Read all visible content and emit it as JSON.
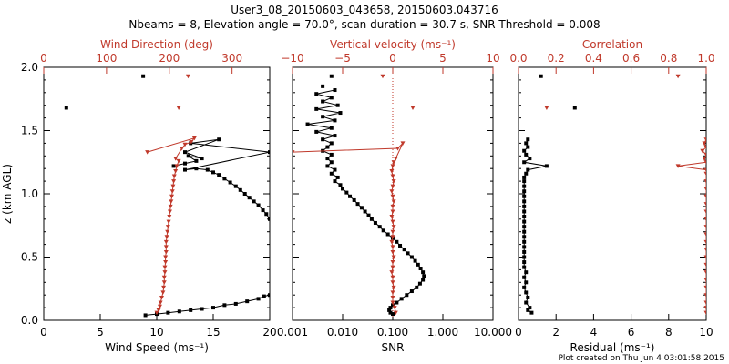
{
  "header": {
    "title_line1": "User3_08_20150603_043658, 20150603.043716",
    "title_line2": "Nbeams = 8, Elevation angle = 70.0°, scan duration = 30.7 s, SNR Threshold = 0.008"
  },
  "footer": {
    "text": "Plot created on Thu Jun  4 03:01:58 2015"
  },
  "colors": {
    "primary": "#000000",
    "secondary": "#c0392b"
  },
  "chart_data": [
    {
      "type": "line",
      "ylabel": "z (km AGL)",
      "ylim": [
        0,
        2.0
      ],
      "yticks": [
        "0.0",
        "0.5",
        "1.0",
        "1.5",
        "2.0"
      ],
      "bottom_axis": {
        "label": "Wind Speed (ms⁻¹)",
        "lim": [
          0,
          20
        ],
        "ticks": [
          "0",
          "5",
          "10",
          "15",
          "20"
        ]
      },
      "top_axis": {
        "label": "Wind Direction (deg)",
        "lim": [
          0,
          360
        ],
        "ticks": [
          "0",
          "100",
          "200",
          "300"
        ]
      },
      "series": [
        {
          "axis": "bottom",
          "color": "#000000",
          "points": [
            [
              2,
              1.68
            ],
            [
              8.8,
              1.93
            ],
            [
              11.5,
              1.22
            ],
            [
              12.5,
              1.24
            ],
            [
              13.5,
              1.26
            ],
            [
              12.8,
              1.3
            ],
            [
              14,
              1.28
            ],
            [
              12.5,
              1.33
            ],
            [
              15.5,
              1.43
            ],
            [
              13,
              1.4
            ],
            [
              20,
              1.33
            ],
            [
              12.5,
              1.19
            ],
            [
              13.5,
              1.2
            ],
            [
              14.5,
              1.19
            ],
            [
              15,
              1.17
            ],
            [
              15.5,
              1.15
            ],
            [
              16,
              1.12
            ],
            [
              16.5,
              1.09
            ],
            [
              17,
              1.06
            ],
            [
              17.4,
              1.03
            ],
            [
              17.8,
              1.0
            ],
            [
              18.2,
              0.97
            ],
            [
              18.6,
              0.94
            ],
            [
              19,
              0.91
            ],
            [
              19.4,
              0.87
            ],
            [
              19.7,
              0.84
            ],
            [
              20,
              0.8
            ],
            [
              20,
              0.2
            ],
            [
              19.5,
              0.19
            ],
            [
              19,
              0.17
            ],
            [
              18,
              0.15
            ],
            [
              17,
              0.13
            ],
            [
              16,
              0.12
            ],
            [
              15,
              0.1
            ],
            [
              14,
              0.09
            ],
            [
              13,
              0.08
            ],
            [
              12,
              0.07
            ],
            [
              11,
              0.06
            ],
            [
              10,
              0.05
            ],
            [
              9,
              0.04
            ]
          ]
        },
        {
          "axis": "top",
          "color": "#c0392b",
          "points": [
            [
              230,
              1.93
            ],
            [
              215,
              1.68
            ],
            [
              165,
              1.33
            ],
            [
              240,
              1.44
            ],
            [
              235,
              1.41
            ],
            [
              225,
              1.39
            ],
            [
              220,
              1.36
            ],
            [
              210,
              1.28
            ],
            [
              215,
              1.26
            ],
            [
              212,
              1.22
            ],
            [
              210,
              1.18
            ],
            [
              208,
              1.14
            ],
            [
              207,
              1.1
            ],
            [
              206,
              1.06
            ],
            [
              205,
              1.02
            ],
            [
              204,
              0.98
            ],
            [
              203,
              0.94
            ],
            [
              202,
              0.9
            ],
            [
              201,
              0.86
            ],
            [
              200,
              0.82
            ],
            [
              199,
              0.78
            ],
            [
              198,
              0.74
            ],
            [
              197,
              0.7
            ],
            [
              196,
              0.66
            ],
            [
              195,
              0.62
            ],
            [
              195,
              0.58
            ],
            [
              195,
              0.54
            ],
            [
              194,
              0.5
            ],
            [
              194,
              0.46
            ],
            [
              193,
              0.42
            ],
            [
              193,
              0.38
            ],
            [
              192,
              0.34
            ],
            [
              192,
              0.3
            ],
            [
              191,
              0.26
            ],
            [
              190,
              0.22
            ],
            [
              188,
              0.18
            ],
            [
              186,
              0.14
            ],
            [
              185,
              0.11
            ],
            [
              183,
              0.08
            ],
            [
              180,
              0.06
            ]
          ]
        }
      ]
    },
    {
      "type": "line",
      "ylim": [
        0,
        2.0
      ],
      "bottom_axis": {
        "label": "SNR",
        "scale": "log",
        "lim": [
          0.001,
          10
        ],
        "ticks": [
          "0.001",
          "0.010",
          "0.100",
          "1.000",
          "10.000"
        ]
      },
      "top_axis": {
        "label": "Vertical velocity (ms⁻¹)",
        "lim": [
          -10,
          10
        ],
        "ticks": [
          "−10",
          "−5",
          "0",
          "5",
          "10"
        ]
      },
      "series": [
        {
          "axis": "bottom",
          "color": "#000000",
          "points": [
            [
              0.006,
              1.93
            ],
            [
              0.004,
              1.85
            ],
            [
              0.007,
              1.82
            ],
            [
              0.003,
              1.79
            ],
            [
              0.006,
              1.76
            ],
            [
              0.004,
              1.73
            ],
            [
              0.008,
              1.7
            ],
            [
              0.003,
              1.67
            ],
            [
              0.009,
              1.64
            ],
            [
              0.004,
              1.61
            ],
            [
              0.007,
              1.58
            ],
            [
              0.002,
              1.55
            ],
            [
              0.006,
              1.52
            ],
            [
              0.003,
              1.49
            ],
            [
              0.007,
              1.46
            ],
            [
              0.004,
              1.43
            ],
            [
              0.006,
              1.4
            ],
            [
              0.005,
              1.37
            ],
            [
              0.004,
              1.34
            ],
            [
              0.006,
              1.31
            ],
            [
              0.005,
              1.28
            ],
            [
              0.006,
              1.25
            ],
            [
              0.005,
              1.22
            ],
            [
              0.007,
              1.19
            ],
            [
              0.006,
              1.16
            ],
            [
              0.008,
              1.13
            ],
            [
              0.007,
              1.1
            ],
            [
              0.009,
              1.07
            ],
            [
              0.01,
              1.04
            ],
            [
              0.012,
              1.01
            ],
            [
              0.014,
              0.98
            ],
            [
              0.017,
              0.95
            ],
            [
              0.02,
              0.92
            ],
            [
              0.024,
              0.89
            ],
            [
              0.028,
              0.86
            ],
            [
              0.033,
              0.83
            ],
            [
              0.038,
              0.8
            ],
            [
              0.045,
              0.77
            ],
            [
              0.055,
              0.74
            ],
            [
              0.065,
              0.71
            ],
            [
              0.08,
              0.68
            ],
            [
              0.1,
              0.65
            ],
            [
              0.12,
              0.62
            ],
            [
              0.14,
              0.59
            ],
            [
              0.17,
              0.56
            ],
            [
              0.2,
              0.53
            ],
            [
              0.24,
              0.5
            ],
            [
              0.28,
              0.47
            ],
            [
              0.32,
              0.44
            ],
            [
              0.36,
              0.41
            ],
            [
              0.4,
              0.38
            ],
            [
              0.42,
              0.35
            ],
            [
              0.4,
              0.32
            ],
            [
              0.35,
              0.29
            ],
            [
              0.3,
              0.26
            ],
            [
              0.24,
              0.23
            ],
            [
              0.19,
              0.2
            ],
            [
              0.15,
              0.17
            ],
            [
              0.12,
              0.14
            ],
            [
              0.1,
              0.12
            ],
            [
              0.09,
              0.1
            ],
            [
              0.085,
              0.08
            ],
            [
              0.09,
              0.06
            ],
            [
              0.1,
              0.05
            ]
          ]
        },
        {
          "axis": "top",
          "color": "#c0392b",
          "points": [
            [
              -1,
              1.93
            ],
            [
              2,
              1.68
            ],
            [
              -10,
              1.33
            ],
            [
              0.5,
              1.36
            ],
            [
              1,
              1.4
            ],
            [
              0.3,
              1.28
            ],
            [
              0.1,
              1.25
            ],
            [
              0,
              1.22
            ],
            [
              -0.1,
              1.18
            ],
            [
              0,
              1.14
            ],
            [
              0.1,
              1.1
            ],
            [
              0,
              1.06
            ],
            [
              -0.1,
              1.02
            ],
            [
              0,
              0.98
            ],
            [
              0.1,
              0.94
            ],
            [
              0,
              0.9
            ],
            [
              0,
              0.86
            ],
            [
              -0.1,
              0.82
            ],
            [
              0,
              0.78
            ],
            [
              0.1,
              0.74
            ],
            [
              0,
              0.7
            ],
            [
              0,
              0.66
            ],
            [
              -0.1,
              0.62
            ],
            [
              0,
              0.58
            ],
            [
              0,
              0.54
            ],
            [
              0.1,
              0.5
            ],
            [
              0,
              0.46
            ],
            [
              0,
              0.42
            ],
            [
              -0.1,
              0.38
            ],
            [
              0,
              0.34
            ],
            [
              0,
              0.3
            ],
            [
              0.1,
              0.26
            ],
            [
              0,
              0.22
            ],
            [
              0,
              0.18
            ],
            [
              0,
              0.14
            ],
            [
              0.2,
              0.1
            ],
            [
              0.3,
              0.06
            ]
          ]
        }
      ]
    },
    {
      "type": "line",
      "ylim": [
        0,
        2.0
      ],
      "bottom_axis": {
        "label": "Residual (ms⁻¹)",
        "lim": [
          0,
          10
        ],
        "ticks": [
          "0",
          "2",
          "4",
          "6",
          "8",
          "10"
        ]
      },
      "top_axis": {
        "label": "Correlation",
        "lim": [
          0,
          1.0
        ],
        "ticks": [
          "0.0",
          "0.2",
          "0.4",
          "0.6",
          "0.8",
          "1.0"
        ]
      },
      "series": [
        {
          "axis": "bottom",
          "color": "#000000",
          "points": [
            [
              1.2,
              1.93
            ],
            [
              3,
              1.68
            ],
            [
              0.5,
              1.43
            ],
            [
              0.4,
              1.4
            ],
            [
              0.5,
              1.37
            ],
            [
              0.3,
              1.34
            ],
            [
              0.4,
              1.31
            ],
            [
              0.6,
              1.28
            ],
            [
              0.3,
              1.25
            ],
            [
              1.5,
              1.22
            ],
            [
              0.5,
              1.19
            ],
            [
              0.4,
              1.16
            ],
            [
              0.3,
              1.13
            ],
            [
              0.3,
              1.1
            ],
            [
              0.3,
              1.06
            ],
            [
              0.3,
              1.02
            ],
            [
              0.3,
              0.98
            ],
            [
              0.3,
              0.94
            ],
            [
              0.3,
              0.9
            ],
            [
              0.3,
              0.86
            ],
            [
              0.3,
              0.82
            ],
            [
              0.3,
              0.78
            ],
            [
              0.3,
              0.74
            ],
            [
              0.3,
              0.7
            ],
            [
              0.3,
              0.66
            ],
            [
              0.3,
              0.62
            ],
            [
              0.3,
              0.58
            ],
            [
              0.3,
              0.54
            ],
            [
              0.3,
              0.5
            ],
            [
              0.3,
              0.46
            ],
            [
              0.3,
              0.42
            ],
            [
              0.4,
              0.38
            ],
            [
              0.3,
              0.34
            ],
            [
              0.4,
              0.3
            ],
            [
              0.3,
              0.26
            ],
            [
              0.4,
              0.22
            ],
            [
              0.5,
              0.18
            ],
            [
              0.4,
              0.14
            ],
            [
              0.6,
              0.1
            ],
            [
              0.5,
              0.08
            ],
            [
              0.7,
              0.06
            ]
          ]
        },
        {
          "axis": "top",
          "color": "#c0392b",
          "points": [
            [
              0.85,
              1.93
            ],
            [
              0.15,
              1.68
            ],
            [
              1.0,
              1.43
            ],
            [
              0.99,
              1.4
            ],
            [
              1.0,
              1.37
            ],
            [
              0.98,
              1.34
            ],
            [
              1.0,
              1.31
            ],
            [
              0.99,
              1.28
            ],
            [
              1.0,
              1.25
            ],
            [
              0.85,
              1.22
            ],
            [
              1.0,
              1.19
            ],
            [
              1.0,
              1.16
            ],
            [
              1.0,
              1.1
            ],
            [
              1.0,
              1.04
            ],
            [
              1.0,
              0.98
            ],
            [
              1.0,
              0.92
            ],
            [
              1.0,
              0.86
            ],
            [
              1.0,
              0.8
            ],
            [
              1.0,
              0.74
            ],
            [
              1.0,
              0.68
            ],
            [
              1.0,
              0.62
            ],
            [
              1.0,
              0.56
            ],
            [
              1.0,
              0.5
            ],
            [
              1.0,
              0.44
            ],
            [
              1.0,
              0.38
            ],
            [
              1.0,
              0.32
            ],
            [
              1.0,
              0.26
            ],
            [
              1.0,
              0.2
            ],
            [
              1.0,
              0.14
            ],
            [
              1.0,
              0.1
            ],
            [
              1.0,
              0.06
            ]
          ]
        }
      ]
    }
  ]
}
